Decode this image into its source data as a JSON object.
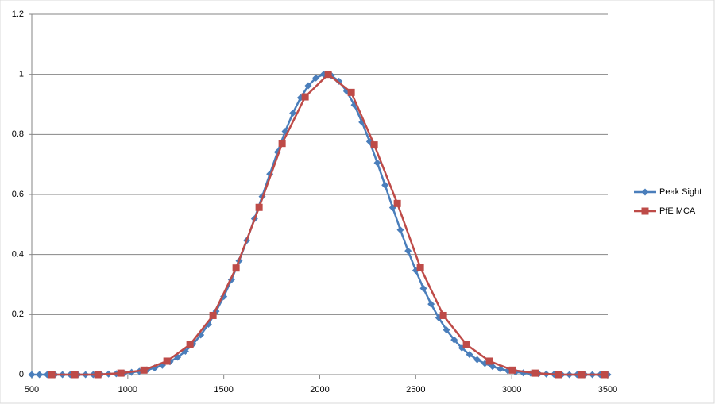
{
  "chart_data": {
    "type": "line",
    "series": [
      {
        "name": "Peak Sight",
        "color": "#4a7ebb",
        "marker": "diamond",
        "x": [
          500,
          540,
          580,
          620,
          660,
          700,
          740,
          780,
          820,
          860,
          900,
          940,
          980,
          1020,
          1060,
          1100,
          1140,
          1180,
          1220,
          1260,
          1300,
          1340,
          1380,
          1420,
          1460,
          1500,
          1540,
          1580,
          1620,
          1660,
          1700,
          1740,
          1780,
          1820,
          1860,
          1900,
          1940,
          1980,
          2020,
          2060,
          2100,
          2140,
          2180,
          2220,
          2260,
          2300,
          2340,
          2380,
          2420,
          2460,
          2500,
          2540,
          2580,
          2620,
          2660,
          2700,
          2740,
          2780,
          2820,
          2860,
          2900,
          2940,
          2980,
          3020,
          3060,
          3100,
          3140,
          3180,
          3220,
          3260,
          3300,
          3340,
          3380,
          3420,
          3460,
          3500
        ],
        "values": [
          0,
          0,
          0,
          0,
          0,
          0,
          0,
          0,
          0,
          0.001,
          0.002,
          0.003,
          0.005,
          0.0075,
          0.011,
          0.016,
          0.022,
          0.031,
          0.043,
          0.058,
          0.078,
          0.102,
          0.132,
          0.168,
          0.211,
          0.26,
          0.316,
          0.379,
          0.447,
          0.519,
          0.593,
          0.668,
          0.741,
          0.81,
          0.871,
          0.922,
          0.962,
          0.988,
          1.0,
          0.996,
          0.977,
          0.944,
          0.898,
          0.841,
          0.776,
          0.705,
          0.631,
          0.556,
          0.482,
          0.412,
          0.347,
          0.287,
          0.235,
          0.189,
          0.149,
          0.116,
          0.089,
          0.067,
          0.05,
          0.037,
          0.027,
          0.019,
          0.013,
          0.009,
          0.006,
          0.004,
          0.003,
          0.002,
          0.001,
          0,
          0,
          0,
          0,
          0,
          0,
          0
        ]
      },
      {
        "name": "PfE MCA",
        "color": "#be4b48",
        "marker": "square",
        "x": [
          604,
          724,
          844,
          964,
          1084,
          1204,
          1324,
          1444,
          1564,
          1684,
          1804,
          1924,
          2044,
          2164,
          2284,
          2404,
          2524,
          2644,
          2764,
          2884,
          3004,
          3124,
          3244,
          3364,
          3484
        ],
        "values": [
          0,
          0,
          0,
          0.005,
          0.015,
          0.045,
          0.1,
          0.197,
          0.355,
          0.557,
          0.77,
          0.925,
          1.0,
          0.94,
          0.765,
          0.57,
          0.357,
          0.197,
          0.1,
          0.045,
          0.015,
          0.005,
          0,
          0,
          0
        ]
      }
    ],
    "xlim": [
      500,
      3500
    ],
    "xticks": [
      500,
      1000,
      1500,
      2000,
      2500,
      3000,
      3500
    ],
    "ylim": [
      0,
      1.2
    ],
    "yticks": [
      0,
      0.2,
      0.4,
      0.6,
      0.8,
      1,
      1.2
    ],
    "grid": true,
    "legend": "right"
  }
}
